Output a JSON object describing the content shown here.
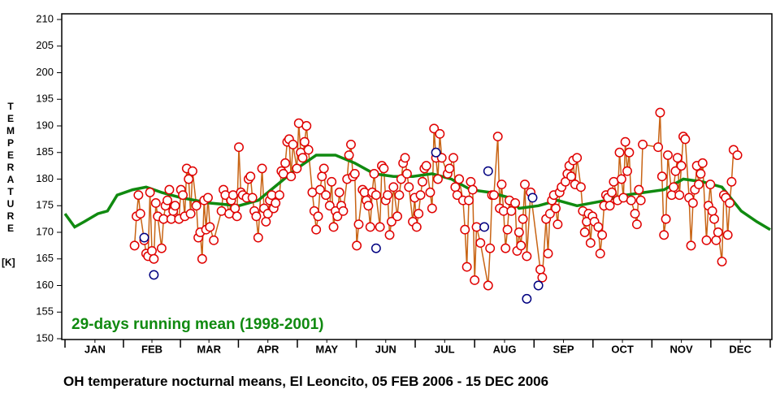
{
  "chart_data": {
    "type": "line",
    "title": "OH temperature nocturnal means, El Leoncito, 05 FEB 2006 - 15 DEC 2006",
    "y_label": "TEMPERATURE",
    "y_unit": "[K]",
    "xlim": [
      0,
      365
    ],
    "xticks": [
      {
        "value": 15.5,
        "label": "JAN"
      },
      {
        "value": 45,
        "label": "FEB"
      },
      {
        "value": 74.5,
        "label": "MAR"
      },
      {
        "value": 105,
        "label": "APR"
      },
      {
        "value": 135.5,
        "label": "MAY"
      },
      {
        "value": 166,
        "label": "JUN"
      },
      {
        "value": 196.5,
        "label": "JUL"
      },
      {
        "value": 227.5,
        "label": "AUG"
      },
      {
        "value": 258,
        "label": "SEP"
      },
      {
        "value": 288.5,
        "label": "OCT"
      },
      {
        "value": 319,
        "label": "NOV"
      },
      {
        "value": 349.5,
        "label": "DEC"
      }
    ],
    "ylim": [
      150,
      210
    ],
    "yticks": [
      150,
      155,
      160,
      165,
      170,
      175,
      180,
      185,
      190,
      195,
      200,
      205,
      210
    ],
    "series": [
      {
        "color": "#e00000",
        "line_color": "#c86414",
        "marker": "circle",
        "x": [
          36,
          37,
          38,
          39,
          41,
          42,
          43,
          44,
          45,
          46,
          47,
          48,
          50,
          51,
          52,
          53,
          54,
          55,
          56,
          57,
          59,
          60,
          61,
          62,
          63,
          64,
          65,
          66,
          68,
          69,
          70,
          71,
          72,
          73,
          74,
          75,
          77,
          81,
          82,
          83,
          85,
          86,
          87,
          88,
          89,
          90,
          91,
          92,
          94,
          95,
          96,
          97,
          98,
          99,
          100,
          102,
          103,
          104,
          105,
          106,
          107,
          108,
          109,
          111,
          112,
          113,
          114,
          115,
          116,
          117,
          118,
          120,
          121,
          122,
          123,
          124,
          125,
          126,
          128,
          129,
          130,
          131,
          132,
          133,
          134,
          135,
          137,
          138,
          139,
          140,
          141,
          142,
          143,
          144,
          146,
          147,
          148,
          149,
          150,
          151,
          152,
          154,
          155,
          156,
          157,
          158,
          159,
          160,
          161,
          163,
          164,
          165,
          166,
          167,
          168,
          169,
          170,
          172,
          173,
          174,
          175,
          176,
          177,
          178,
          180,
          181,
          182,
          183,
          184,
          185,
          186,
          187,
          189,
          190,
          191,
          192,
          193,
          194,
          195,
          198,
          199,
          201,
          202,
          203,
          204,
          206,
          207,
          208,
          209,
          210,
          211,
          212,
          213,
          215,
          219,
          220,
          221,
          222,
          224,
          225,
          226,
          227,
          228,
          229,
          230,
          231,
          233,
          234,
          235,
          236,
          237,
          238,
          239,
          241,
          246,
          247,
          249,
          250,
          251,
          252,
          253,
          254,
          255,
          256,
          257,
          259,
          260,
          261,
          262,
          263,
          264,
          265,
          267,
          268,
          269,
          270,
          271,
          272,
          273,
          274,
          276,
          277,
          278,
          279,
          280,
          281,
          282,
          283,
          284,
          286,
          287,
          288,
          289,
          290,
          291,
          292,
          293,
          295,
          296,
          297,
          298,
          299,
          307,
          308,
          309,
          310,
          311,
          312,
          314,
          315,
          316,
          317,
          318,
          319,
          320,
          321,
          323,
          324,
          325,
          326,
          327,
          328,
          329,
          330,
          332,
          333,
          334,
          335,
          336,
          337,
          338,
          340,
          341,
          342,
          343,
          344,
          345,
          346,
          348
        ],
        "values": [
          167.5,
          173,
          177,
          173.5,
          168.5,
          166,
          165.5,
          177.5,
          166.5,
          165,
          175.5,
          173,
          167,
          172.5,
          175,
          176,
          178,
          172.5,
          174,
          175,
          172.5,
          178,
          177,
          173,
          182,
          180,
          173.5,
          181.5,
          175,
          169,
          170,
          165,
          176,
          170.5,
          176.5,
          171,
          168.5,
          174,
          178,
          177,
          173.5,
          176,
          177,
          174.5,
          173,
          186,
          177.5,
          177,
          176.5,
          180,
          180.5,
          176.5,
          174,
          173,
          169,
          182,
          174.5,
          172,
          173.5,
          176,
          177,
          174.5,
          175.5,
          177,
          181.5,
          181,
          183,
          187,
          187.5,
          180.5,
          186.5,
          182,
          190.5,
          185,
          184,
          187,
          190,
          185.5,
          177.5,
          174,
          170.5,
          173,
          178,
          180.5,
          182,
          177,
          175,
          179.5,
          171,
          174,
          173,
          177.5,
          175,
          174,
          180,
          184.5,
          186.5,
          180.5,
          181,
          167.5,
          171.5,
          178,
          177.5,
          176,
          175,
          171,
          177.5,
          181,
          177,
          171,
          182.5,
          182,
          176,
          177,
          169.5,
          172,
          178.5,
          173,
          177,
          180,
          183,
          184,
          181,
          178.5,
          172,
          176.5,
          171,
          173.5,
          177,
          179.5,
          182,
          182.5,
          177.5,
          174.5,
          189.5,
          184,
          180,
          188.5,
          184,
          181,
          182,
          184,
          178.5,
          177,
          180,
          176,
          170.5,
          163.5,
          176,
          179.5,
          178,
          161,
          171,
          168,
          160,
          167,
          177,
          177,
          188,
          174.5,
          179,
          174,
          167,
          170.5,
          176,
          174,
          175.5,
          166.5,
          170,
          167.5,
          172.5,
          179,
          165.5,
          177.5,
          163,
          161.5,
          172.5,
          166,
          173.5,
          176,
          177,
          174.5,
          171.5,
          177.5,
          178.5,
          179.5,
          181,
          182.5,
          180.5,
          183.5,
          179,
          184,
          178.5,
          174,
          170,
          172,
          173.5,
          168,
          173,
          172,
          171,
          166,
          169.5,
          175,
          177,
          176.5,
          175,
          177.5,
          179.5,
          176,
          185,
          180,
          176.5,
          187,
          181.5,
          185,
          176,
          173.5,
          171.5,
          178,
          176,
          186.5,
          186,
          192.5,
          180.5,
          169.5,
          172.5,
          184.5,
          177,
          178.5,
          181.5,
          184,
          177,
          182.5,
          188,
          187.5,
          176.5,
          167.5,
          175.5,
          178,
          182.5,
          179,
          181,
          183,
          168.5,
          175,
          179,
          174,
          172.5,
          168.5,
          170,
          164.5,
          177,
          176.5,
          169.5,
          175.5,
          179.5,
          185.5,
          184.5
        ]
      },
      {
        "color": "#000080",
        "marker": "circle",
        "x": [
          41,
          46,
          161,
          192,
          217,
          219,
          239,
          242,
          245
        ],
        "values": [
          169,
          162,
          167,
          185,
          171,
          181.5,
          157.5,
          176.5,
          160
        ]
      },
      {
        "name": "29-days running mean (1998-2001)",
        "color": "#108a10",
        "x": [
          0,
          5,
          10,
          17,
          22,
          27,
          35,
          42,
          50,
          60,
          75,
          90,
          100,
          110,
          120,
          130,
          140,
          150,
          160,
          170,
          180,
          190,
          200,
          210,
          220,
          230,
          235,
          245,
          255,
          265,
          280,
          290,
          300,
          310,
          320,
          330,
          340,
          350,
          358,
          365
        ],
        "values": [
          173.5,
          171,
          172,
          173.5,
          174,
          177,
          178,
          178.5,
          177.5,
          176.5,
          175.5,
          175,
          176,
          179,
          182,
          184.5,
          184.5,
          183,
          181,
          180.5,
          180.5,
          181,
          180,
          178,
          177.5,
          176.5,
          174.5,
          175,
          176,
          175,
          176,
          177,
          177.5,
          178,
          180,
          179.5,
          178.5,
          174,
          172,
          170.5
        ]
      }
    ]
  }
}
